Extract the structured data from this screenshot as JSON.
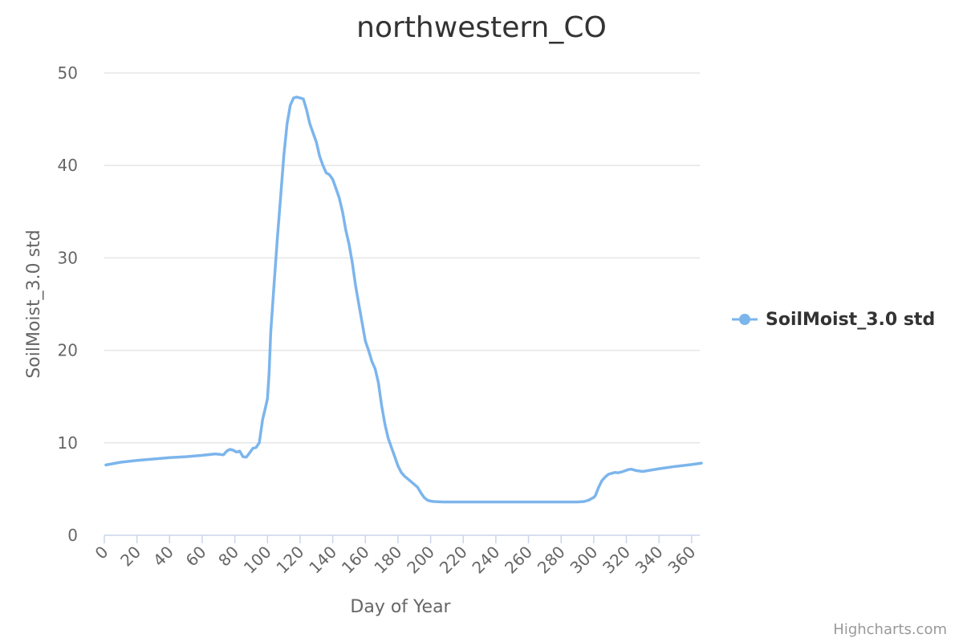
{
  "chart_data": {
    "type": "line",
    "title": "northwestern_CO",
    "xlabel": "Day of Year",
    "ylabel": "SoilMoist_3.0 std",
    "xlim": [
      0,
      365
    ],
    "ylim": [
      0,
      50
    ],
    "x_ticks": [
      0,
      20,
      40,
      60,
      80,
      100,
      120,
      140,
      160,
      180,
      200,
      220,
      240,
      260,
      280,
      300,
      320,
      340,
      360
    ],
    "y_ticks": [
      0,
      10,
      20,
      30,
      40,
      50
    ],
    "grid": true,
    "legend_position": "right",
    "series": [
      {
        "name": "SoilMoist_3.0 std",
        "color": "#7cb5ec",
        "x": [
          1,
          10,
          20,
          30,
          40,
          50,
          60,
          68,
          71,
          73,
          75,
          77,
          79,
          81,
          83,
          85,
          87,
          89,
          91,
          93,
          95,
          97,
          99,
          100,
          101,
          102,
          104,
          106,
          108,
          110,
          112,
          114,
          116,
          118,
          120,
          122,
          124,
          126,
          128,
          130,
          132,
          134,
          136,
          138,
          140,
          142,
          144,
          146,
          148,
          150,
          152,
          154,
          156,
          158,
          160,
          162,
          164,
          166,
          168,
          170,
          172,
          174,
          176,
          178,
          180,
          182,
          184,
          186,
          188,
          190,
          192,
          194,
          196,
          198,
          200,
          202,
          205,
          208,
          212,
          220,
          240,
          260,
          280,
          290,
          294,
          297,
          299,
          300,
          301,
          303,
          305,
          307,
          309,
          311,
          313,
          315,
          318,
          321,
          323,
          326,
          330,
          340,
          350,
          360,
          366
        ],
        "values": [
          7.6,
          7.9,
          8.1,
          8.25,
          8.4,
          8.5,
          8.65,
          8.8,
          8.75,
          8.7,
          9.1,
          9.3,
          9.2,
          9.0,
          9.1,
          8.5,
          8.45,
          8.9,
          9.4,
          9.5,
          10.0,
          12.5,
          14.0,
          14.8,
          17.5,
          22.0,
          27.0,
          32.0,
          36.5,
          41.0,
          44.5,
          46.5,
          47.3,
          47.4,
          47.3,
          47.2,
          46.0,
          44.5,
          43.5,
          42.5,
          41.0,
          40.0,
          39.2,
          39.0,
          38.5,
          37.5,
          36.5,
          35.0,
          33.0,
          31.5,
          29.5,
          27.0,
          25.0,
          23.0,
          21.0,
          20.0,
          18.8,
          18.0,
          16.5,
          14.0,
          12.0,
          10.5,
          9.5,
          8.5,
          7.5,
          6.8,
          6.4,
          6.1,
          5.8,
          5.5,
          5.2,
          4.6,
          4.1,
          3.8,
          3.7,
          3.65,
          3.62,
          3.6,
          3.6,
          3.6,
          3.6,
          3.6,
          3.6,
          3.6,
          3.65,
          3.8,
          4.0,
          4.1,
          4.3,
          5.2,
          5.9,
          6.3,
          6.6,
          6.7,
          6.8,
          6.75,
          6.9,
          7.1,
          7.15,
          7.0,
          6.9,
          7.2,
          7.45,
          7.65,
          7.8
        ]
      }
    ]
  },
  "credits": "Highcharts.com"
}
